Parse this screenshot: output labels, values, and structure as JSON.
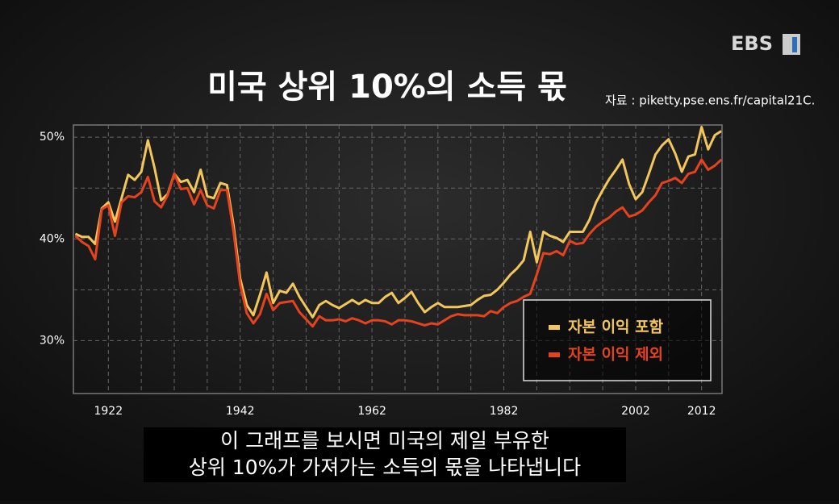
{
  "logo": "EBS",
  "chart_data": {
    "type": "line",
    "title": "미국 상위 10%의 소득 몫",
    "source": "자료 : piketty.pse.ens.fr/capital21C.",
    "x": [
      1917,
      1918,
      1919,
      1920,
      1921,
      1922,
      1923,
      1924,
      1925,
      1926,
      1927,
      1928,
      1929,
      1930,
      1931,
      1932,
      1933,
      1934,
      1935,
      1936,
      1937,
      1938,
      1939,
      1940,
      1941,
      1942,
      1943,
      1944,
      1945,
      1946,
      1947,
      1948,
      1949,
      1950,
      1951,
      1952,
      1953,
      1954,
      1955,
      1956,
      1957,
      1958,
      1959,
      1960,
      1961,
      1962,
      1963,
      1964,
      1965,
      1966,
      1967,
      1968,
      1969,
      1970,
      1971,
      1972,
      1973,
      1974,
      1975,
      1976,
      1977,
      1978,
      1979,
      1980,
      1981,
      1982,
      1983,
      1984,
      1985,
      1986,
      1987,
      1988,
      1989,
      1990,
      1991,
      1992,
      1993,
      1994,
      1995,
      1996,
      1997,
      1998,
      1999,
      2000,
      2001,
      2002,
      2003,
      2004,
      2005,
      2006,
      2007,
      2008,
      2009,
      2010,
      2011,
      2012,
      2013,
      2014,
      2015
    ],
    "series": [
      {
        "name": "자본 이익 포함",
        "color": "#f3c65a",
        "values": [
          40.5,
          40.2,
          40.2,
          39.5,
          43.0,
          43.6,
          41.7,
          44.0,
          46.3,
          45.8,
          46.6,
          49.7,
          47.0,
          43.8,
          44.4,
          46.4,
          45.6,
          45.8,
          44.6,
          46.8,
          44.2,
          44.0,
          45.5,
          45.3,
          41.3,
          36.1,
          33.5,
          32.5,
          34.5,
          36.7,
          33.7,
          34.9,
          34.7,
          35.6,
          34.3,
          33.3,
          32.3,
          33.5,
          33.9,
          33.5,
          33.2,
          33.6,
          34.0,
          33.6,
          34.0,
          33.7,
          33.7,
          34.3,
          34.7,
          33.7,
          34.2,
          34.8,
          33.7,
          32.8,
          33.3,
          33.7,
          33.3,
          33.3,
          33.3,
          33.4,
          33.5,
          34.0,
          34.4,
          34.5,
          35.0,
          35.7,
          36.5,
          37.1,
          37.9,
          40.7,
          37.7,
          40.7,
          40.3,
          40.1,
          39.7,
          40.7,
          40.7,
          40.7,
          41.9,
          43.6,
          44.8,
          45.9,
          46.8,
          47.8,
          45.4,
          43.9,
          44.6,
          46.4,
          48.3,
          49.2,
          49.8,
          48.4,
          46.6,
          48.1,
          48.3,
          51.0,
          48.8,
          50.2,
          50.6
        ]
      },
      {
        "name": "자본 이익 제외",
        "color": "#e5431d",
        "values": [
          40.3,
          39.7,
          39.3,
          38.0,
          42.9,
          43.3,
          40.3,
          43.6,
          44.2,
          44.1,
          44.6,
          46.1,
          43.7,
          43.1,
          44.3,
          46.4,
          44.9,
          45.0,
          43.4,
          44.8,
          43.3,
          43.0,
          44.8,
          44.8,
          40.7,
          35.5,
          32.7,
          31.7,
          32.6,
          34.6,
          33.0,
          33.7,
          33.8,
          33.9,
          32.8,
          32.1,
          31.4,
          32.4,
          32.0,
          32.0,
          32.1,
          31.9,
          32.2,
          32.0,
          31.7,
          32.0,
          32.0,
          31.9,
          31.6,
          32.0,
          32.0,
          31.9,
          31.7,
          31.5,
          31.7,
          31.6,
          32.0,
          32.4,
          32.6,
          32.5,
          32.5,
          32.5,
          32.4,
          32.9,
          32.7,
          33.3,
          33.7,
          33.9,
          34.3,
          34.6,
          36.5,
          38.6,
          38.5,
          38.8,
          38.4,
          39.8,
          39.5,
          39.6,
          40.5,
          41.2,
          41.7,
          42.1,
          42.7,
          43.1,
          42.2,
          42.4,
          42.8,
          43.6,
          44.3,
          45.5,
          45.7,
          46.0,
          45.5,
          46.4,
          46.6,
          47.8,
          46.8,
          47.2,
          47.8
        ]
      }
    ],
    "xlim": [
      1916.7,
      2015.1
    ],
    "xticks": [
      1922,
      1942,
      1962,
      1982,
      2002,
      2012
    ],
    "ylim": [
      24.8,
      51.2
    ],
    "yticks": [
      {
        "value": 30,
        "label": "30%"
      },
      {
        "value": 40,
        "label": "40%"
      },
      {
        "value": 50,
        "label": "50%"
      }
    ],
    "xgrid": [
      1922,
      1927,
      1932,
      1937,
      1942,
      1947,
      1952,
      1957,
      1962,
      1967,
      1972,
      1977,
      1982,
      1987,
      1992,
      1997,
      2002,
      2007,
      2012
    ],
    "ygrid": [
      30,
      35,
      40,
      45,
      50
    ]
  },
  "subtitles": [
    "이 그래프를 보시면 미국의 제일 부유한",
    "상위 10%가 가져가는 소득의 몫을 나타냅니다"
  ]
}
